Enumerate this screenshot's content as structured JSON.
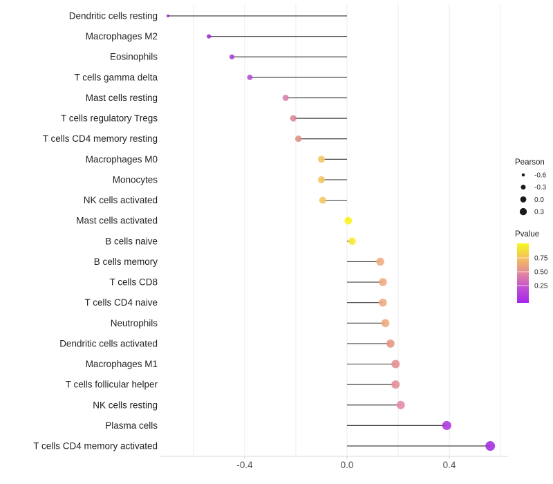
{
  "chart_data": {
    "type": "lollipop",
    "title": "",
    "xlabel": "",
    "ylabel": "",
    "xlim": [
      -0.73,
      0.63
    ],
    "x_ticks": [
      -0.4,
      0.0,
      0.4
    ],
    "x_tick_labels": [
      "-0.4",
      "0.0",
      "0.4"
    ],
    "gridlines_x": [
      -0.6,
      -0.4,
      -0.2,
      0.0,
      0.2,
      0.4,
      0.6
    ],
    "grid_on": true,
    "point_size_encodes": "Pearson",
    "point_color_encodes": "Pvalue",
    "points": [
      {
        "label": "Dendritic cells resting",
        "pearson": -0.7,
        "color": "#8522CC"
      },
      {
        "label": "Macrophages M2",
        "pearson": -0.54,
        "color": "#9D2BD4"
      },
      {
        "label": "Eosinophils",
        "pearson": -0.45,
        "color": "#A73ED2"
      },
      {
        "label": "T cells gamma delta",
        "pearson": -0.38,
        "color": "#B04DD3"
      },
      {
        "label": "Mast cells resting",
        "pearson": -0.24,
        "color": "#DB7FA9"
      },
      {
        "label": "T cells regulatory  Tregs",
        "pearson": -0.21,
        "color": "#D98A97"
      },
      {
        "label": "T cells CD4 memory resting",
        "pearson": -0.19,
        "color": "#DD9287"
      },
      {
        "label": "Macrophages M0",
        "pearson": -0.1,
        "color": "#F3C65F"
      },
      {
        "label": "Monocytes",
        "pearson": -0.1,
        "color": "#F3C45F"
      },
      {
        "label": "NK cells activated",
        "pearson": -0.095,
        "color": "#F2C55E"
      },
      {
        "label": "Mast cells activated",
        "pearson": 0.005,
        "color": "#FAF31B"
      },
      {
        "label": "B cells naive",
        "pearson": 0.02,
        "color": "#F7EB31"
      },
      {
        "label": "B cells memory",
        "pearson": 0.13,
        "color": "#EFAC80"
      },
      {
        "label": "T cells CD8",
        "pearson": 0.14,
        "color": "#EFAA7E"
      },
      {
        "label": "T cells CD4 naive",
        "pearson": 0.14,
        "color": "#EFAA7E"
      },
      {
        "label": "Neutrophils",
        "pearson": 0.15,
        "color": "#EEA87C"
      },
      {
        "label": "Dendritic cells activated",
        "pearson": 0.17,
        "color": "#E6957F"
      },
      {
        "label": "Macrophages M1",
        "pearson": 0.19,
        "color": "#E58C90"
      },
      {
        "label": "T cells follicular helper",
        "pearson": 0.19,
        "color": "#E58C95"
      },
      {
        "label": "NK cells resting",
        "pearson": 0.21,
        "color": "#E289A8"
      },
      {
        "label": "Plasma cells",
        "pearson": 0.39,
        "color": "#AD35DD"
      },
      {
        "label": "T cells CD4 memory activated",
        "pearson": 0.56,
        "color": "#A32CE0"
      }
    ],
    "legend": {
      "size": {
        "title": "Pearson",
        "entries": [
          {
            "label": "-0.6",
            "value": -0.6
          },
          {
            "label": "-0.3",
            "value": -0.3
          },
          {
            "label": "0.0",
            "value": 0.0
          },
          {
            "label": "0.3",
            "value": 0.3
          }
        ]
      },
      "color": {
        "title": "Pvalue",
        "tick_labels": [
          "0.75",
          "0.50",
          "0.25"
        ],
        "gradient_top_to_bottom": [
          "#F5F821",
          "#F3C05C",
          "#E2879C",
          "#C04FD4",
          "#A525E9"
        ],
        "domain": [
          0,
          1
        ]
      },
      "position": "right"
    },
    "colors": {
      "stem": "#454545",
      "grid": "#EBEBEB",
      "axis_line": "#DADADA",
      "tick_mark": "#C9C9C9",
      "x_tick_text": "#4D4D4D",
      "category_text": "#1F1F1F",
      "legend_text": "#262626",
      "legend_dot": "#1A1A1A",
      "background": "#FFFFFF"
    }
  }
}
